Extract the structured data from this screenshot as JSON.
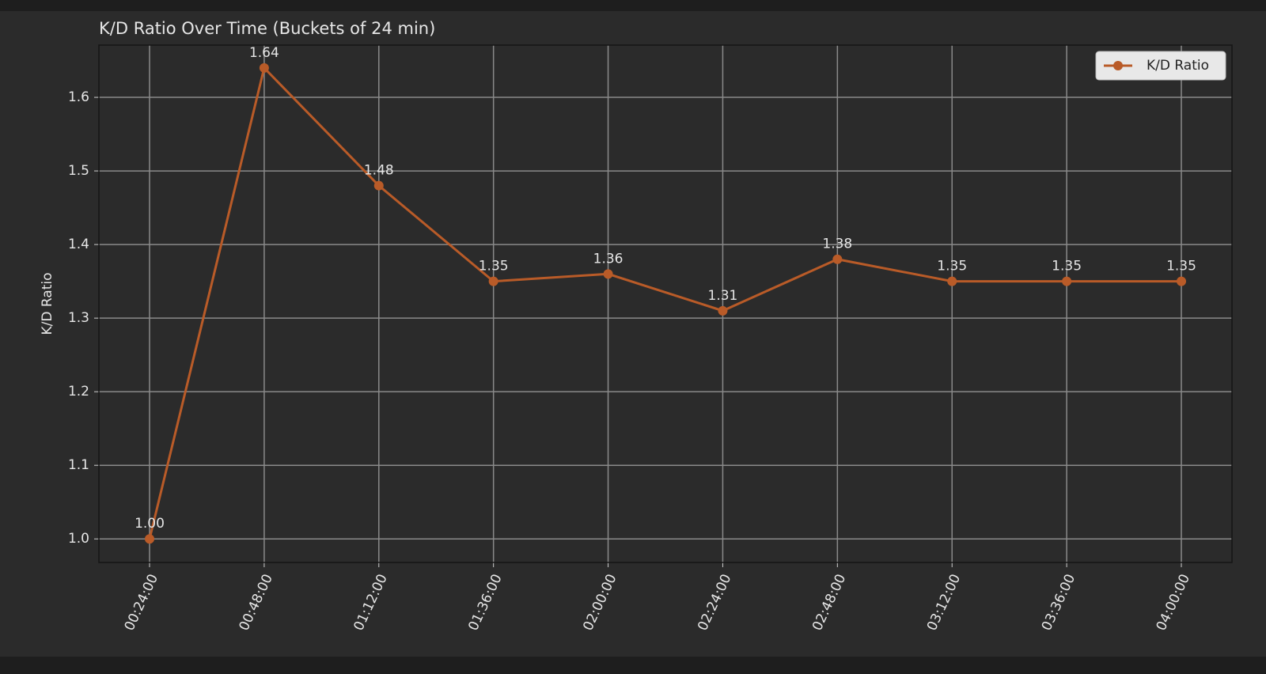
{
  "chart_data": {
    "type": "line",
    "title": "K/D Ratio Over Time (Buckets of 24 min)",
    "ylabel": "K/D Ratio",
    "categories": [
      "00:24:00",
      "00:48:00",
      "01:12:00",
      "01:36:00",
      "02:00:00",
      "02:24:00",
      "02:48:00",
      "03:12:00",
      "03:36:00",
      "04:00:00"
    ],
    "series": [
      {
        "name": "K/D Ratio",
        "color": "#b95b28",
        "values": [
          1.0,
          1.64,
          1.48,
          1.35,
          1.36,
          1.31,
          1.38,
          1.35,
          1.35,
          1.35
        ],
        "value_labels": [
          "1.00",
          "1.64",
          "1.48",
          "1.35",
          "1.36",
          "1.31",
          "1.38",
          "1.35",
          "1.35",
          "1.35"
        ]
      }
    ],
    "ylim": [
      0.968,
      1.671
    ],
    "yticks": [
      {
        "value": 1,
        "label": "1.0"
      },
      1.1,
      1.2,
      1.3,
      1.4,
      1.5,
      1.6
    ],
    "grid": true,
    "legend": "upper-right"
  }
}
